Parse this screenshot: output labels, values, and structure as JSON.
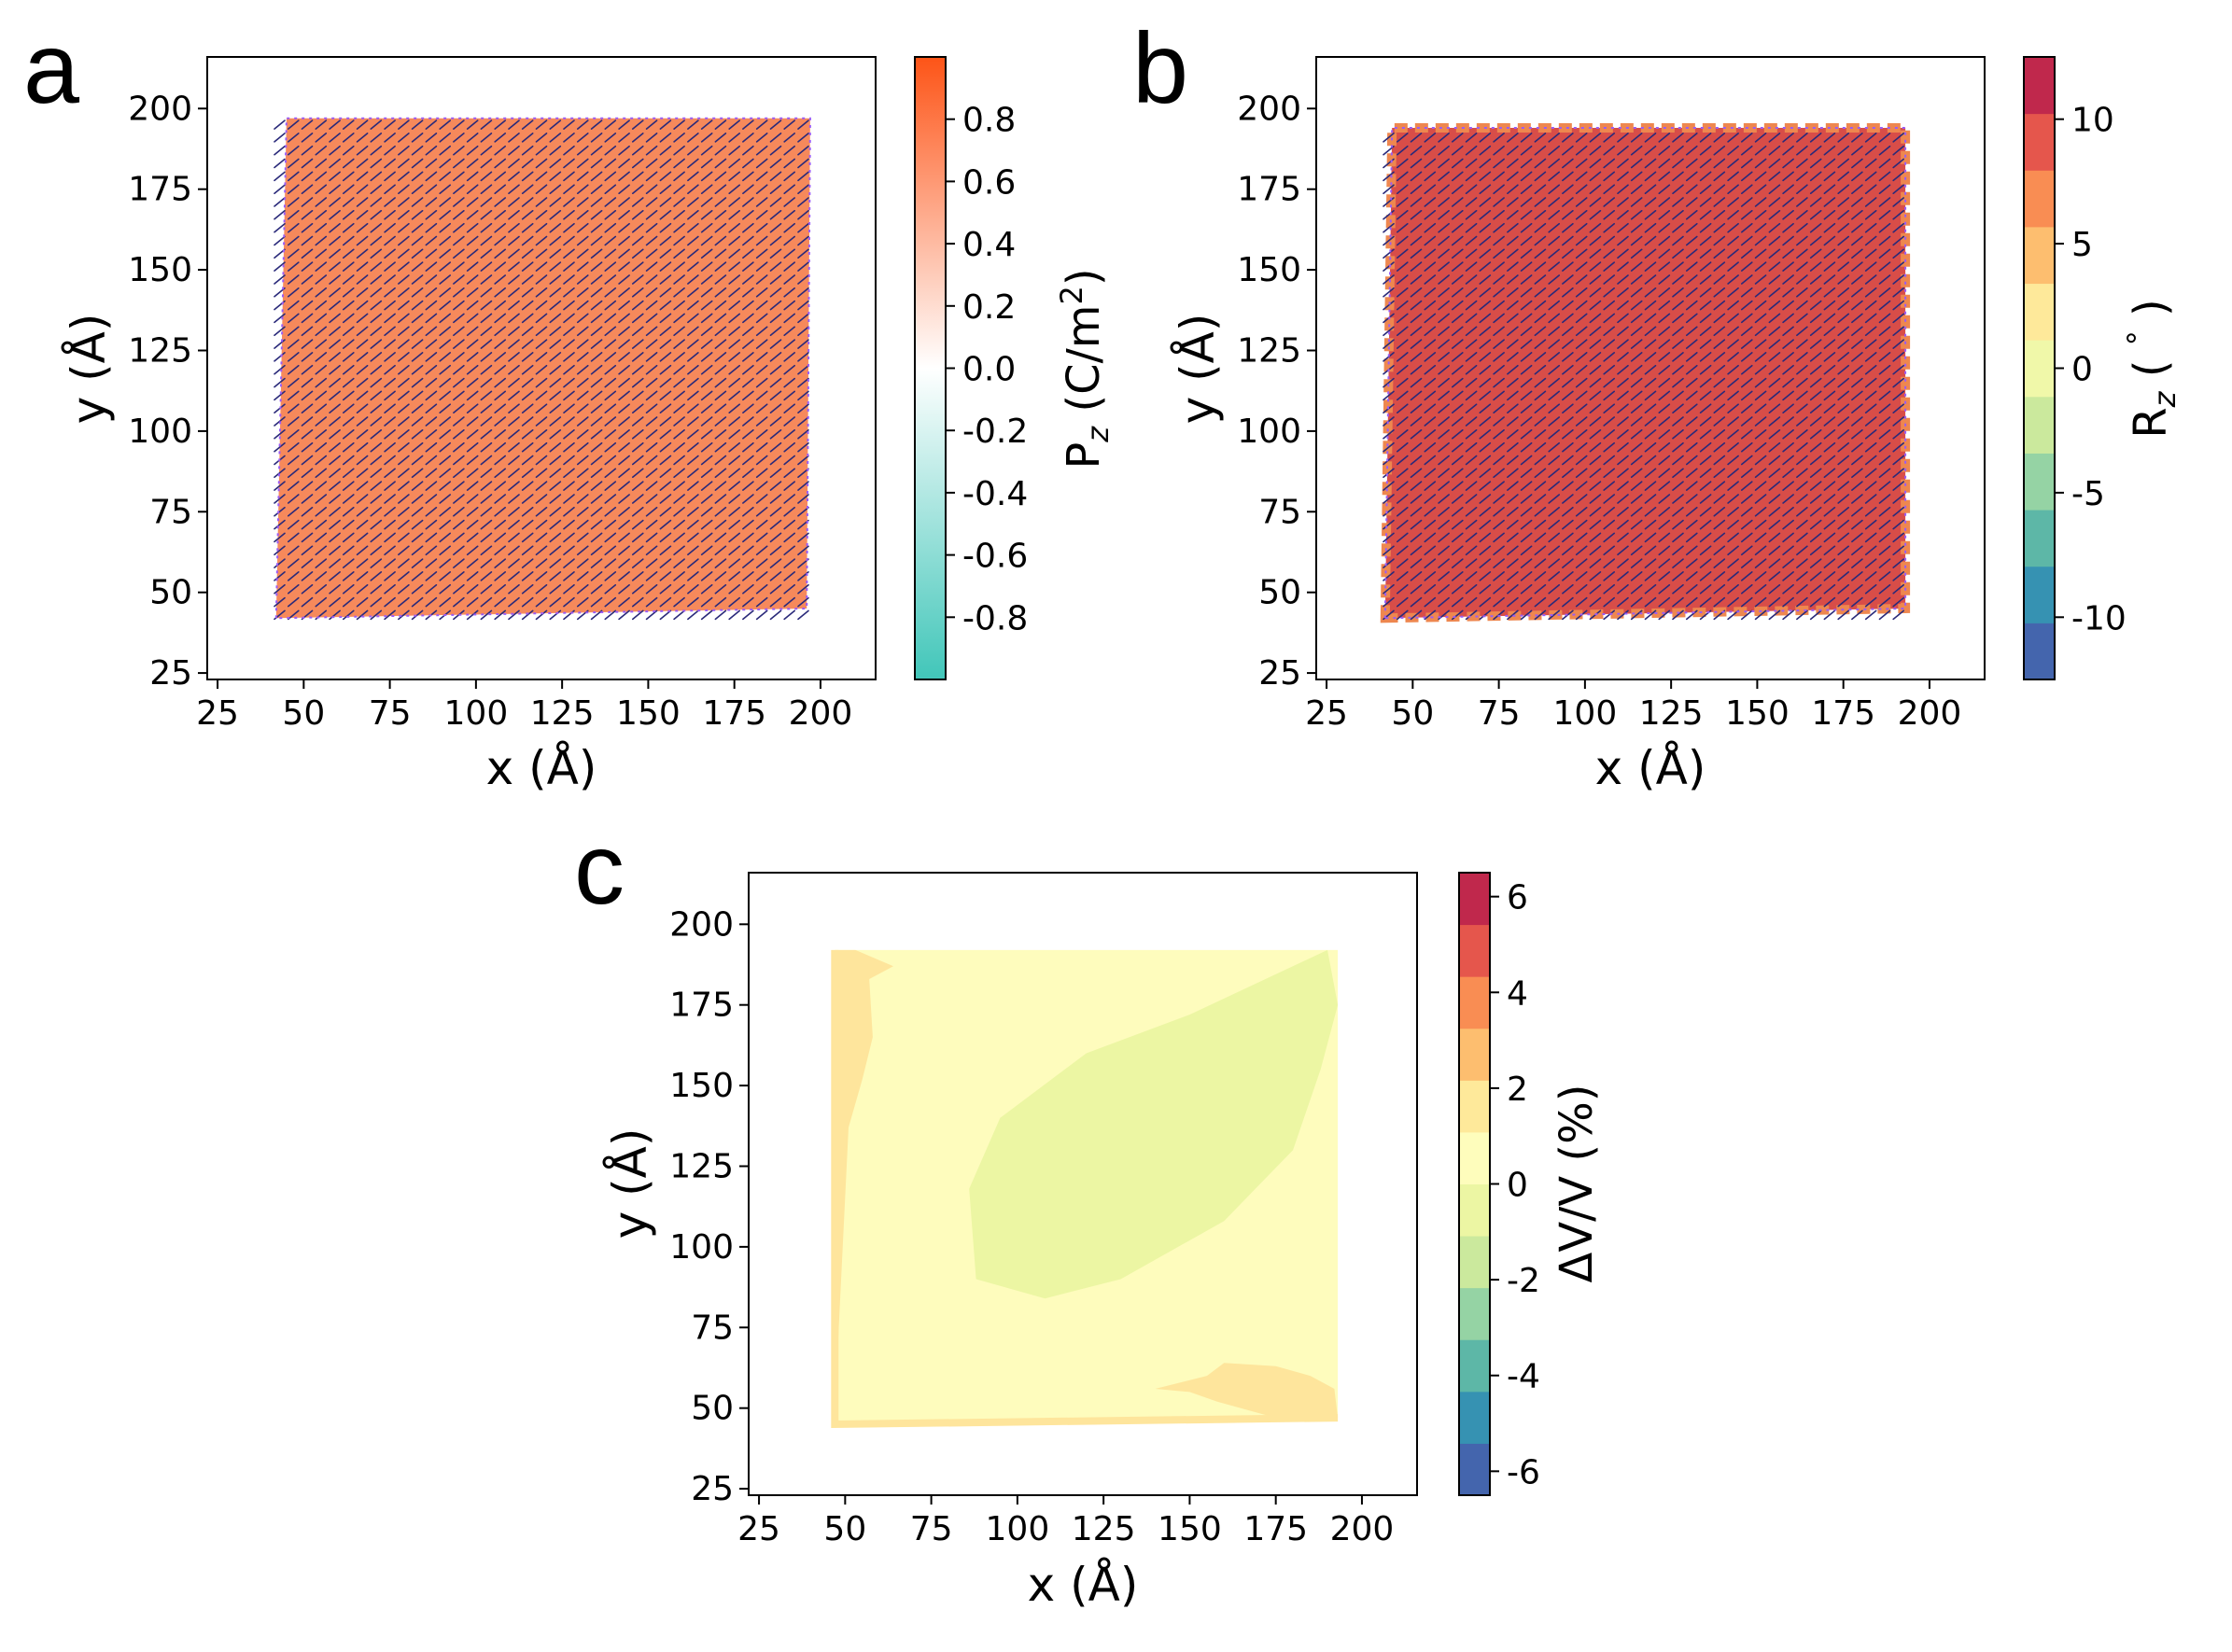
{
  "colors": {
    "pz_stops": [
      "#41c6b9",
      "#ffffff",
      "#fd5417"
    ],
    "pz_fill": "#f6895b",
    "rz_bands": [
      "#4465ad",
      "#3692b2",
      "#5db7a7",
      "#95d3a4",
      "#cbe99d",
      "#f0f8a9",
      "#fee99a",
      "#fdbe6f",
      "#f98d53",
      "#e5564c",
      "#c0284c"
    ],
    "rz_fill": "#d84d48",
    "rz_edge": "#ee874f",
    "dv_bands": [
      "#4465ad",
      "#3692b2",
      "#5db7a7",
      "#95d3a4",
      "#cbe99d",
      "#ecf6a3",
      "#fefdbc",
      "#fee99a",
      "#fdbe6f",
      "#f98d53",
      "#e5564c",
      "#c0284c"
    ],
    "dv_base": "#fefcbd",
    "dv_low": "#ecf6a3",
    "dv_high": "#fee59c",
    "arrow": "#2a2a7a",
    "arrow_edge": "#9a5cf5"
  },
  "chart_data": [
    {
      "panel": "a",
      "type": "heatmap",
      "xlabel": "x (Å)",
      "ylabel": "y (Å)",
      "xlim": [
        22,
        216
      ],
      "ylim": [
        23,
        216
      ],
      "xticks": [
        25,
        50,
        75,
        100,
        125,
        150,
        175,
        200
      ],
      "yticks": [
        25,
        50,
        75,
        100,
        125,
        150,
        175,
        200
      ],
      "xtick_labels": [
        "25",
        "50",
        "75",
        "100",
        "125",
        "150",
        "175",
        "200"
      ],
      "ytick_labels": [
        "25",
        "50",
        "75",
        "100",
        "125",
        "150",
        "175",
        "200"
      ],
      "region": [
        [
          42,
          42
        ],
        [
          45,
          197
        ],
        [
          197,
          197
        ],
        [
          196,
          45
        ]
      ],
      "field_value": 0.55,
      "colorbar": {
        "label": "P",
        "label_sub": "z",
        "label_unit_prefix": " (C/m",
        "label_unit_sup": "2",
        "label_unit_suffix": ")",
        "range": [
          -1.0,
          1.0
        ],
        "ticks": [
          0.8,
          0.6,
          0.4,
          0.2,
          0.0,
          -0.2,
          -0.4,
          -0.6,
          -0.8
        ],
        "tick_labels": [
          "0.8",
          "0.6",
          "0.4",
          "0.2",
          "0.0",
          "-0.2",
          "-0.4",
          "-0.6",
          "-0.8"
        ]
      }
    },
    {
      "panel": "b",
      "type": "heatmap",
      "xlabel": "x (Å)",
      "ylabel": "y (Å)",
      "xlim": [
        22,
        216
      ],
      "ylim": [
        23,
        216
      ],
      "xticks": [
        25,
        50,
        75,
        100,
        125,
        150,
        175,
        200
      ],
      "yticks": [
        25,
        50,
        75,
        100,
        125,
        150,
        175,
        200
      ],
      "xtick_labels": [
        "25",
        "50",
        "75",
        "100",
        "125",
        "150",
        "175",
        "200"
      ],
      "ytick_labels": [
        "25",
        "50",
        "75",
        "100",
        "125",
        "150",
        "175",
        "200"
      ],
      "region": [
        [
          42,
          42
        ],
        [
          44,
          194
        ],
        [
          193,
          194
        ],
        [
          193,
          45
        ]
      ],
      "field_value": 8.5,
      "colorbar": {
        "label": "R",
        "label_sub": "z",
        "label_unit_prefix": " ( ",
        "label_unit_sup": "°",
        "label_unit_suffix": " )",
        "range": [
          -12.5,
          12.5
        ],
        "ticks": [
          10,
          5,
          0,
          -5,
          -10
        ],
        "tick_labels": [
          "10",
          "5",
          "0",
          "-5",
          "-10"
        ]
      }
    },
    {
      "panel": "c",
      "type": "heatmap",
      "xlabel": "x (Å)",
      "ylabel": "y (Å)",
      "xlim": [
        22,
        216
      ],
      "ylim": [
        23,
        216
      ],
      "xticks": [
        25,
        50,
        75,
        100,
        125,
        150,
        175,
        200
      ],
      "yticks": [
        25,
        50,
        75,
        100,
        125,
        150,
        175,
        200
      ],
      "xtick_labels": [
        "25",
        "50",
        "75",
        "100",
        "125",
        "150",
        "175",
        "200"
      ],
      "ytick_labels": [
        "25",
        "50",
        "75",
        "100",
        "125",
        "150",
        "175",
        "200"
      ],
      "region": [
        [
          47,
          45
        ],
        [
          47,
          192
        ],
        [
          193,
          192
        ],
        [
          193,
          47
        ]
      ],
      "low_region": [
        [
          88,
          90
        ],
        [
          86,
          118
        ],
        [
          95,
          140
        ],
        [
          120,
          160
        ],
        [
          150,
          172
        ],
        [
          172,
          183
        ],
        [
          190,
          192
        ],
        [
          193,
          175
        ],
        [
          188,
          155
        ],
        [
          180,
          130
        ],
        [
          160,
          108
        ],
        [
          130,
          90
        ],
        [
          108,
          84
        ]
      ],
      "high_regions": [
        [
          [
            47,
            50
          ],
          [
            47,
            192
          ],
          [
            53,
            192
          ],
          [
            64,
            187
          ],
          [
            57,
            183
          ],
          [
            58,
            165
          ],
          [
            55,
            152
          ],
          [
            51,
            137
          ]
        ],
        [
          [
            158,
            52
          ],
          [
            150,
            55
          ],
          [
            140,
            56
          ],
          [
            155,
            60
          ],
          [
            160,
            64
          ],
          [
            175,
            63
          ],
          [
            185,
            60
          ],
          [
            192,
            56
          ],
          [
            193,
            47
          ],
          [
            175,
            47
          ]
        ]
      ],
      "colorbar": {
        "label": "ΔV/V (%)",
        "range": [
          -6.5,
          6.5
        ],
        "ticks": [
          6,
          4,
          2,
          0,
          -2,
          -4,
          -6
        ],
        "tick_labels": [
          "6",
          "4",
          "2",
          "0",
          "-2",
          "-4",
          "-6"
        ]
      }
    }
  ]
}
